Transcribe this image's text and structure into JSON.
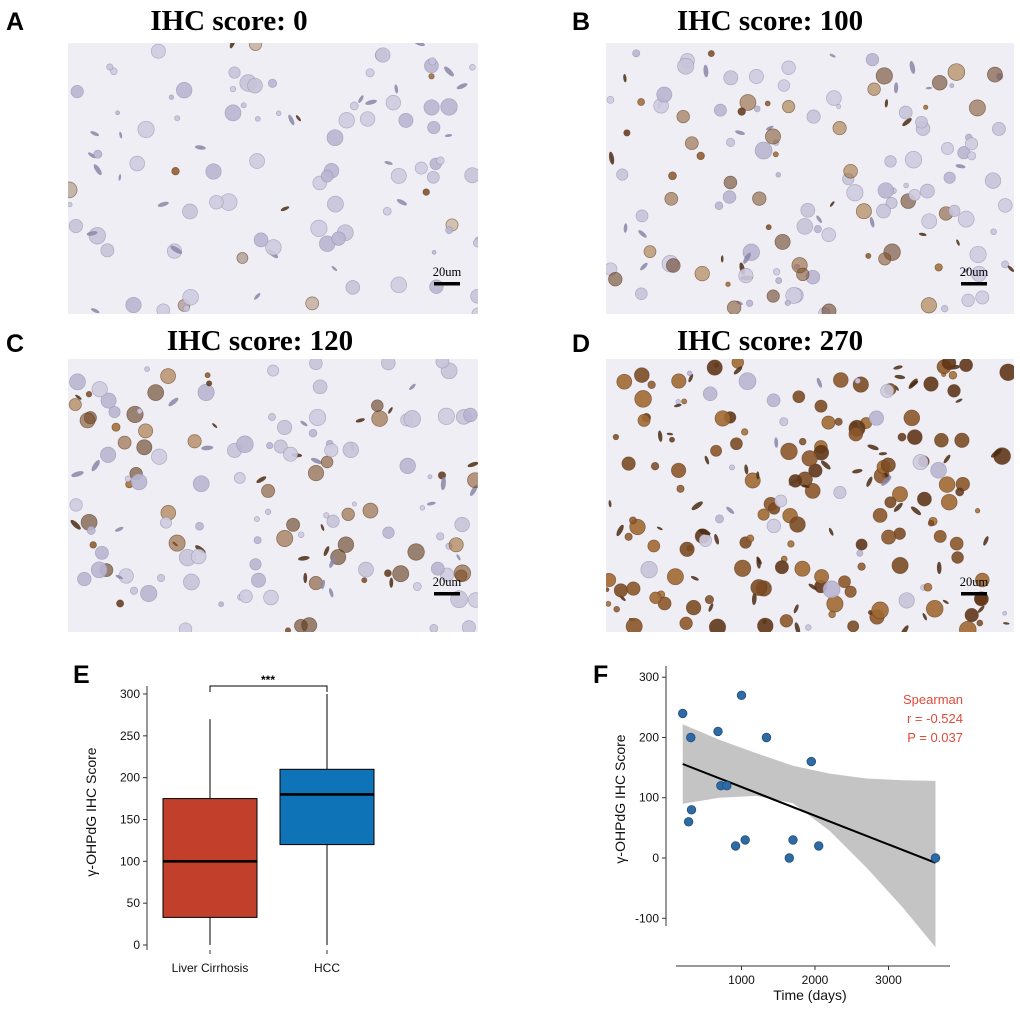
{
  "micrographs": [
    {
      "letter": "A",
      "title": "IHC score: 0",
      "score": 0,
      "scale_label": "20um"
    },
    {
      "letter": "B",
      "title": "IHC score: 100",
      "score": 100,
      "scale_label": "20um"
    },
    {
      "letter": "C",
      "title": "IHC score: 120",
      "score": 120,
      "scale_label": "20um"
    },
    {
      "letter": "D",
      "title": "IHC score: 270",
      "score": 270,
      "scale_label": "20um"
    }
  ],
  "colors": {
    "liver_cirrhosis": "#c23f2b",
    "hcc": "#0f73b8",
    "points": "#2f6aa3",
    "band": "#c4c4c4",
    "stat_text": "#e04a3a",
    "tissue": "#eeeef4"
  },
  "chart_data": [
    {
      "panel": "E",
      "type": "box",
      "categories": [
        "Liver Cirrhosis",
        "HCC"
      ],
      "ylabel": "γ-OHPdG IHC Score",
      "ylim": [
        0,
        300
      ],
      "yticks": [
        0,
        50,
        100,
        150,
        200,
        250,
        300
      ],
      "boxes": [
        {
          "name": "Liver Cirrhosis",
          "whisker_low": 0,
          "q1": 33,
          "median": 100,
          "q3": 175,
          "whisker_high": 270
        },
        {
          "name": "HCC",
          "whisker_low": 0,
          "q1": 120,
          "median": 180,
          "q3": 210,
          "whisker_high": 300
        }
      ],
      "significance": "***"
    },
    {
      "panel": "F",
      "type": "scatter",
      "xlabel": "Time (days)",
      "ylabel": "γ-OHPdG IHC Score",
      "xticks": [
        1000,
        2000,
        3000
      ],
      "yticks": [
        -100,
        0,
        100,
        200,
        300
      ],
      "points": [
        {
          "x": 200,
          "y": 240
        },
        {
          "x": 280,
          "y": 60
        },
        {
          "x": 310,
          "y": 200
        },
        {
          "x": 320,
          "y": 80
        },
        {
          "x": 680,
          "y": 210
        },
        {
          "x": 720,
          "y": 120
        },
        {
          "x": 800,
          "y": 120
        },
        {
          "x": 920,
          "y": 20
        },
        {
          "x": 1000,
          "y": 270
        },
        {
          "x": 1050,
          "y": 30
        },
        {
          "x": 1340,
          "y": 200
        },
        {
          "x": 1650,
          "y": 0
        },
        {
          "x": 1700,
          "y": 30
        },
        {
          "x": 1950,
          "y": 160
        },
        {
          "x": 2050,
          "y": 20
        },
        {
          "x": 3640,
          "y": 0
        }
      ],
      "fit_line": {
        "x": [
          200,
          3640
        ],
        "y": [
          156,
          -8
        ]
      },
      "confidence_band": {
        "x": [
          200,
          700,
          1200,
          1700,
          2200,
          2700,
          3200,
          3640
        ],
        "upper": [
          222,
          196,
          174,
          153,
          140,
          132,
          129,
          128
        ],
        "lower": [
          90,
          100,
          103,
          91,
          45,
          -16,
          -83,
          -148
        ]
      },
      "stat_title": "Spearman",
      "stat_r": "r = -0.524",
      "stat_p": "P = 0.037"
    }
  ]
}
